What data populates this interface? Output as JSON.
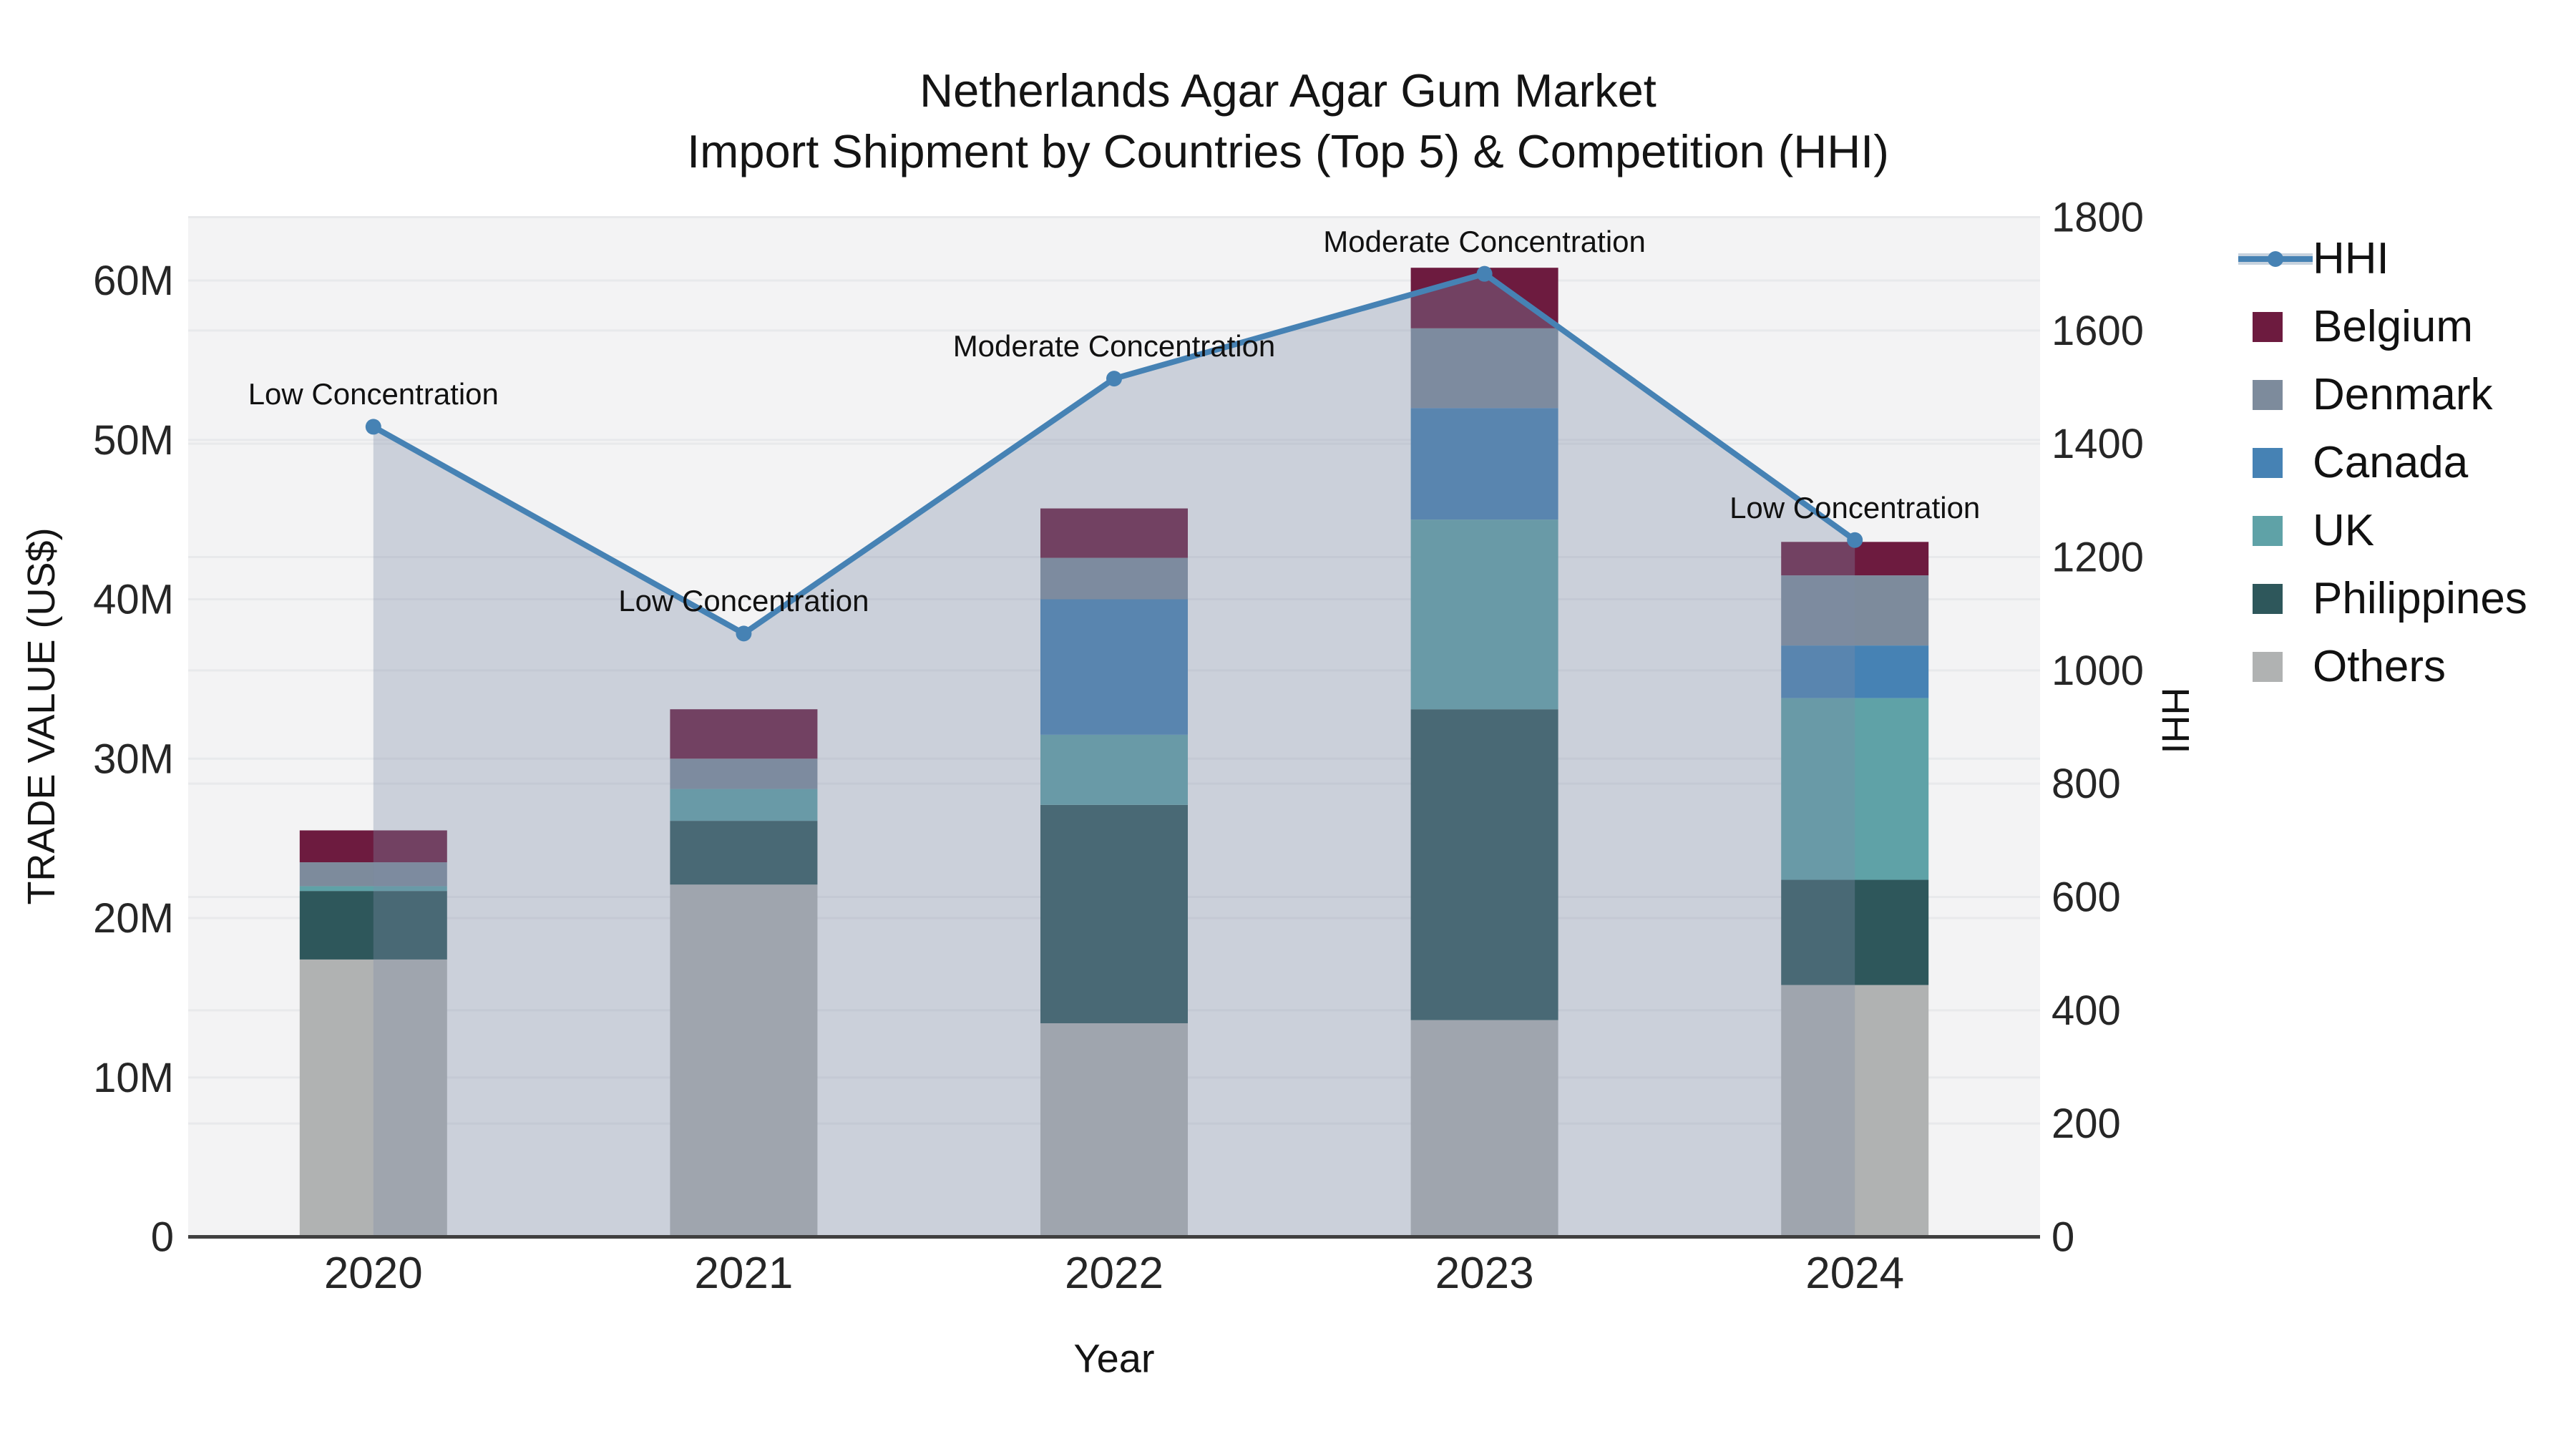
{
  "chart_data": {
    "type": "bar",
    "overlay_type": "line",
    "title": "Netherlands Agar Agar Gum Market",
    "subtitle": "Import Shipment by Countries (Top 5) & Competition (HHI)",
    "xlabel": "Year",
    "ylabel_left": "TRADE VALUE (US$)",
    "ylabel_right": "HHI",
    "values_unit": "million US$",
    "categories": [
      "2020",
      "2021",
      "2022",
      "2023",
      "2024"
    ],
    "stack_order_bottom_to_top": [
      "Others",
      "Philippines",
      "UK",
      "Canada",
      "Denmark",
      "Belgium"
    ],
    "series": [
      {
        "name": "Belgium",
        "color": "#6d1b3f",
        "values": [
          2.0,
          3.1,
          3.1,
          3.8,
          2.1
        ]
      },
      {
        "name": "Denmark",
        "color": "#7d8b9c",
        "values": [
          1.5,
          1.9,
          2.6,
          5.0,
          4.4
        ]
      },
      {
        "name": "Canada",
        "color": "#4682b4",
        "values": [
          0.0,
          0.0,
          8.5,
          7.0,
          3.3
        ]
      },
      {
        "name": "UK",
        "color": "#5fa2a7",
        "values": [
          0.3,
          2.0,
          4.4,
          11.9,
          11.4
        ]
      },
      {
        "name": "Philippines",
        "color": "#2e575b",
        "values": [
          4.3,
          4.0,
          13.7,
          19.5,
          6.6
        ]
      },
      {
        "name": "Others",
        "color": "#b0b2b2",
        "values": [
          17.4,
          22.1,
          13.4,
          13.6,
          15.8
        ]
      }
    ],
    "stack_totals": [
      25.5,
      33.1,
      45.7,
      60.8,
      43.6
    ],
    "hhi": {
      "name": "HHI",
      "line_color": "#4682b4",
      "area_fill": "rgba(125,141,166,0.34)",
      "values": [
        1430,
        1065,
        1515,
        1700,
        1230
      ]
    },
    "annotations": [
      {
        "category": "2020",
        "text": "Low Concentration"
      },
      {
        "category": "2021",
        "text": "Low Concentration"
      },
      {
        "category": "2022",
        "text": "Moderate Concentration"
      },
      {
        "category": "2023",
        "text": "Moderate Concentration"
      },
      {
        "category": "2024",
        "text": "Low Concentration"
      }
    ],
    "y_left_axis": {
      "tick_labels": [
        "0",
        "10M",
        "20M",
        "30M",
        "40M",
        "50M",
        "60M"
      ],
      "tick_values": [
        0,
        10,
        20,
        30,
        40,
        50,
        60
      ],
      "range": [
        0,
        60
      ]
    },
    "y_right_axis": {
      "tick_labels": [
        "0",
        "200",
        "400",
        "600",
        "800",
        "1000",
        "1200",
        "1400",
        "1600",
        "1800"
      ],
      "tick_values": [
        0,
        200,
        400,
        600,
        800,
        1000,
        1200,
        1400,
        1600,
        1800
      ],
      "range": [
        0,
        1800
      ]
    },
    "legend": {
      "position": "right",
      "items": [
        {
          "label": "HHI",
          "type": "line",
          "color": "#4682b4"
        },
        {
          "label": "Belgium",
          "type": "patch",
          "color": "#6d1b3f"
        },
        {
          "label": "Denmark",
          "type": "patch",
          "color": "#7d8b9c"
        },
        {
          "label": "Canada",
          "type": "patch",
          "color": "#4682b4"
        },
        {
          "label": "UK",
          "type": "patch",
          "color": "#5fa2a7"
        },
        {
          "label": "Philippines",
          "type": "patch",
          "color": "#2e575b"
        },
        {
          "label": "Others",
          "type": "patch",
          "color": "#b0b2b2"
        }
      ]
    },
    "grid": true,
    "plot_background": "#f3f3f4",
    "grid_color": "#e8e9eb"
  }
}
